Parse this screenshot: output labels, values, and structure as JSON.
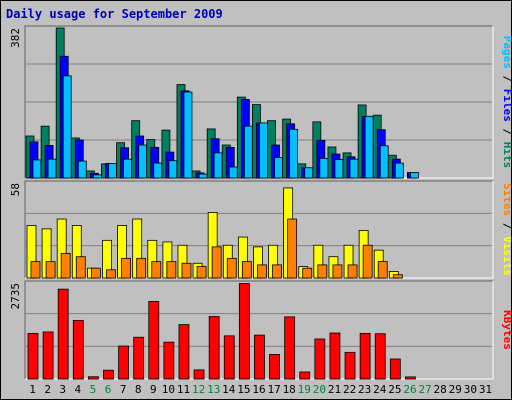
{
  "chart_data": {
    "type": "bar",
    "title": "Daily usage for September 2009",
    "days": [
      "1",
      "2",
      "3",
      "4",
      "5",
      "6",
      "7",
      "8",
      "9",
      "10",
      "11",
      "12",
      "13",
      "14",
      "15",
      "16",
      "17",
      "18",
      "19",
      "20",
      "21",
      "22",
      "23",
      "24",
      "25",
      "26",
      "27",
      "28",
      "29",
      "30",
      "31"
    ],
    "weekend_days": [
      "5",
      "6",
      "12",
      "13",
      "19",
      "20",
      "26",
      "27"
    ],
    "weekend_color": "#008040",
    "weekday_color": "#000000",
    "panels": [
      {
        "id": "hits-files-pages",
        "ymax_label": "382",
        "ylim": [
          0,
          382
        ],
        "right_label": [
          {
            "text": "Pages",
            "color": "#00c0ff"
          },
          {
            "text": " / ",
            "color": "#000000"
          },
          {
            "text": "Files",
            "color": "#0000ff"
          },
          {
            "text": " / ",
            "color": "#000000"
          },
          {
            "text": "Hits",
            "color": "#008060"
          }
        ],
        "series": [
          {
            "name": "Hits",
            "color": "#008060",
            "values": [
              107,
              132,
              382,
              102,
              18,
              36,
              90,
              146,
              98,
              122,
              238,
              18,
              125,
              84,
              206,
              187,
              146,
              150,
              36,
              143,
              79,
              64,
              186,
              160,
              58,
              0,
              0,
              0,
              0,
              0,
              0
            ]
          },
          {
            "name": "Files",
            "color": "#0000ff",
            "values": [
              92,
              83,
              310,
              97,
              12,
              37,
              77,
              107,
              78,
              66,
              222,
              13,
              100,
              78,
              200,
              140,
              84,
              138,
              26,
              96,
              61,
              54,
              157,
              123,
              48,
              14,
              0,
              0,
              0,
              0,
              0
            ]
          },
          {
            "name": "Pages",
            "color": "#00c0ff",
            "values": [
              46,
              48,
              260,
              43,
              8,
              37,
              48,
              84,
              38,
              44,
              219,
              10,
              64,
              28,
              132,
              140,
              52,
              124,
              26,
              50,
              47,
              48,
              157,
              82,
              38,
              14,
              0,
              0,
              0,
              0,
              0
            ]
          }
        ]
      },
      {
        "id": "visits-sites",
        "ymax_label": "58",
        "ylim": [
          0,
          58
        ],
        "right_label": [
          {
            "text": "Sites",
            "color": "#ff8000"
          },
          {
            "text": " / ",
            "color": "#000000"
          },
          {
            "text": "Visits",
            "color": "#ffff00"
          }
        ],
        "series": [
          {
            "name": "Visits",
            "color": "#ffff00",
            "values": [
              32,
              30,
              36,
              32,
              6,
              23,
              32,
              36,
              23,
              22,
              20,
              9,
              40,
              20,
              25,
              19,
              20,
              55,
              7,
              20,
              13,
              20,
              29,
              17,
              4,
              0,
              0,
              0,
              0,
              0,
              0
            ]
          },
          {
            "name": "Sites",
            "color": "#ff8000",
            "values": [
              10,
              10,
              15,
              13,
              6,
              5,
              12,
              12,
              10,
              10,
              9,
              7,
              19,
              12,
              10,
              8,
              8,
              36,
              6,
              8,
              8,
              8,
              20,
              10,
              2,
              0,
              0,
              0,
              0,
              0,
              0
            ]
          }
        ]
      },
      {
        "id": "kbytes",
        "ymax_label": "2735",
        "ylim": [
          0,
          2735
        ],
        "right_label": [
          {
            "text": "KBytes",
            "color": "#ff0000"
          }
        ],
        "series": [
          {
            "name": "KBytes",
            "color": "#ff0000",
            "values": [
              1300,
              1340,
              2560,
              1670,
              65,
              250,
              940,
              1190,
              2210,
              1050,
              1550,
              260,
              1780,
              1230,
              2720,
              1250,
              700,
              1770,
              200,
              1140,
              1310,
              760,
              1300,
              1290,
              570,
              60,
              0,
              0,
              0,
              0,
              0
            ]
          }
        ]
      }
    ]
  }
}
